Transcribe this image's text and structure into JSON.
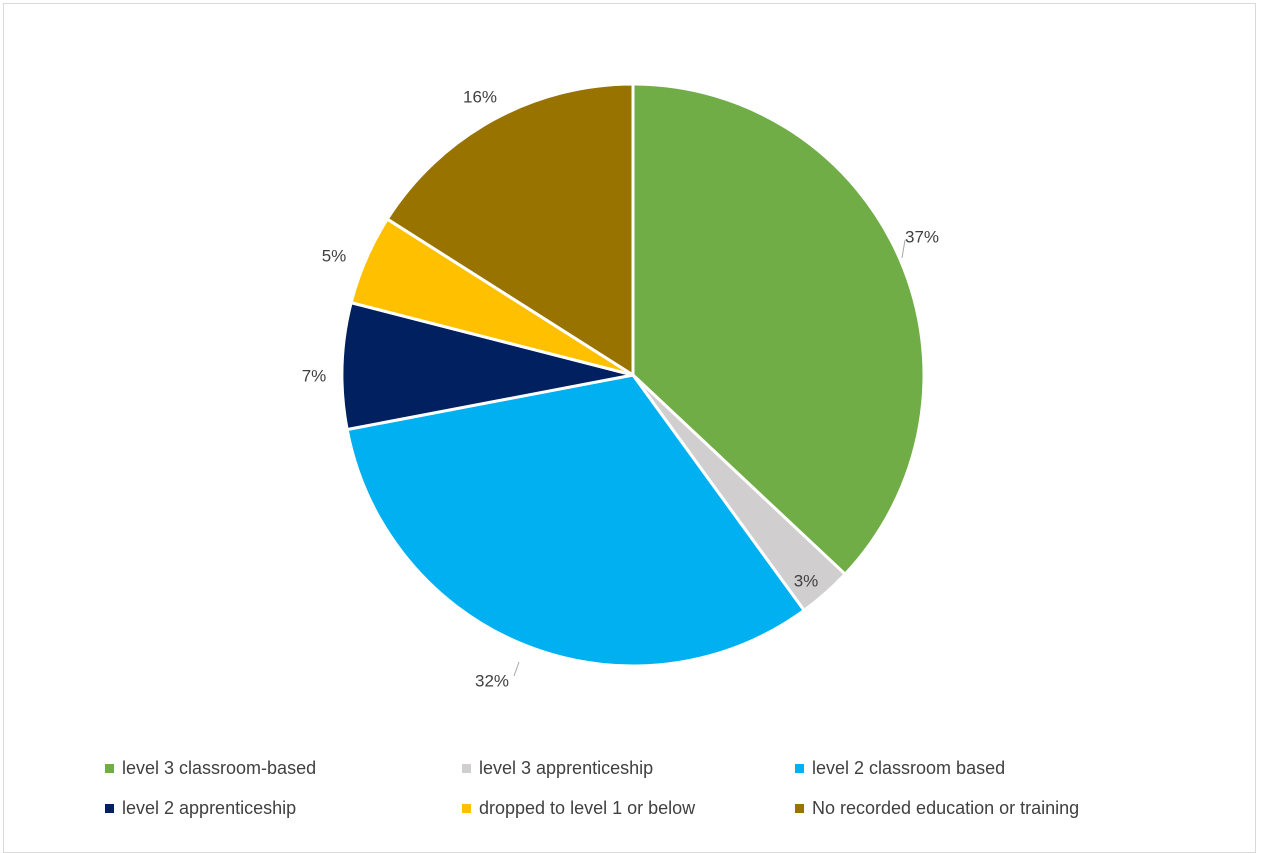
{
  "chart_data": {
    "type": "pie",
    "title": "",
    "slices": [
      {
        "label": "level 3 classroom-based",
        "value": 37,
        "value_label": "37%",
        "color": "#70ad47"
      },
      {
        "label": "level 3 apprenticeship",
        "value": 3,
        "value_label": "3%",
        "color": "#d0cece"
      },
      {
        "label": "level 2 classroom based",
        "value": 32,
        "value_label": "32%",
        "color": "#00b0f0"
      },
      {
        "label": "level 2 apprenticeship",
        "value": 7,
        "value_label": "7%",
        "color": "#002060"
      },
      {
        "label": "dropped to level 1 or below",
        "value": 5,
        "value_label": "5%",
        "color": "#ffc000"
      },
      {
        "label": "No recorded education or training",
        "value": 16,
        "value_label": "16%",
        "color": "#997300"
      }
    ],
    "legend": "bottom"
  }
}
